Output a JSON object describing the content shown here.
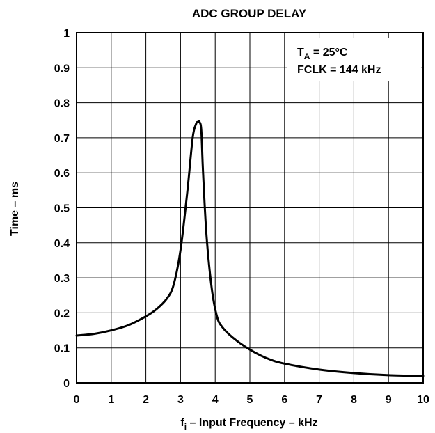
{
  "chart_data": {
    "type": "line",
    "title": "ADC GROUP DELAY",
    "xlabel": {
      "pre": "f",
      "sub": "i",
      "post": " – Input Frequency – kHz"
    },
    "ylabel": "Time – ms",
    "xlim": [
      0,
      10
    ],
    "ylim": [
      0,
      1
    ],
    "x_ticks": [
      "0",
      "1",
      "2",
      "3",
      "4",
      "5",
      "6",
      "7",
      "8",
      "9",
      "10"
    ],
    "y_ticks": [
      "0",
      "0.1",
      "0.2",
      "0.3",
      "0.4",
      "0.5",
      "0.6",
      "0.7",
      "0.8",
      "0.9",
      "1"
    ],
    "grid": true,
    "annotations": {
      "line1": {
        "pre": "T",
        "sub": "A",
        "post": " = 25°C"
      },
      "line2": "FCLK = 144 kHz"
    },
    "series": [
      {
        "x": [
          0,
          0.5,
          1.0,
          1.5,
          2.0,
          2.3,
          2.6,
          2.8,
          3.0,
          3.2,
          3.35,
          3.45,
          3.5,
          3.55,
          3.6,
          3.65,
          3.75,
          3.9,
          4.05,
          4.2,
          4.5,
          5.0,
          5.5,
          6.0,
          7.0,
          8.0,
          9.0,
          10.0
        ],
        "y": [
          0.135,
          0.14,
          0.15,
          0.165,
          0.19,
          0.21,
          0.24,
          0.28,
          0.38,
          0.55,
          0.7,
          0.74,
          0.745,
          0.745,
          0.72,
          0.6,
          0.42,
          0.27,
          0.19,
          0.16,
          0.13,
          0.095,
          0.07,
          0.055,
          0.038,
          0.028,
          0.022,
          0.02
        ]
      }
    ]
  }
}
